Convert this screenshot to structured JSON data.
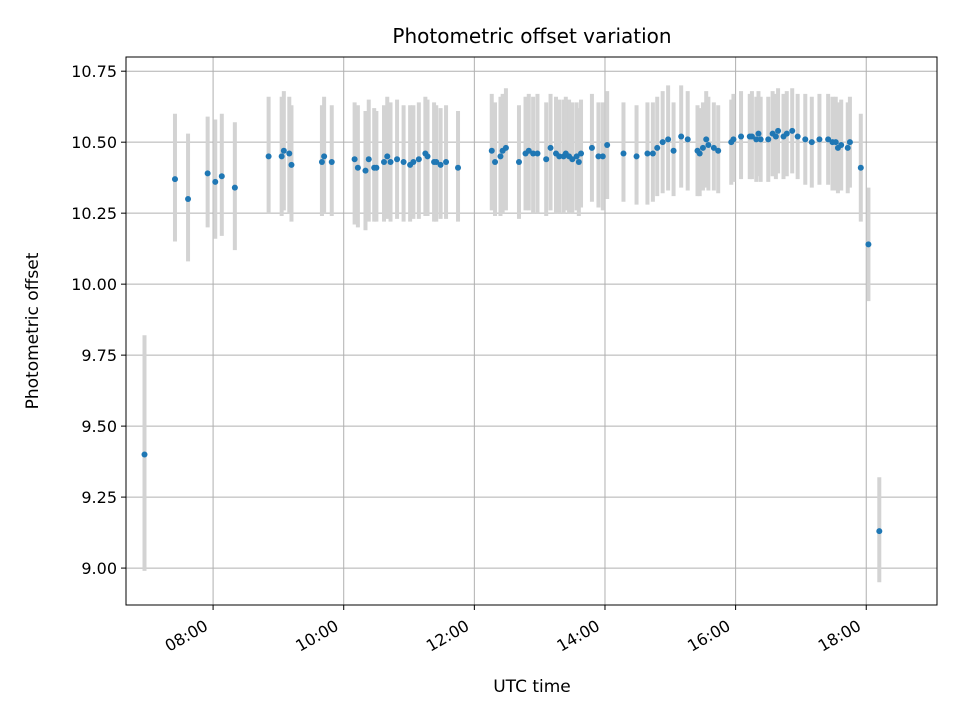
{
  "chart_data": {
    "type": "scatter",
    "title": "Photometric offset variation",
    "xlabel": "UTC time",
    "ylabel": "Photometric offset",
    "grid": true,
    "legend": "none",
    "xlim": [
      "06:40",
      "19:05"
    ],
    "ylim": [
      8.87,
      10.8
    ],
    "x_ticks": [
      "08:00",
      "10:00",
      "12:00",
      "14:00",
      "16:00",
      "18:00"
    ],
    "y_ticks": [
      "9.00",
      "9.25",
      "9.50",
      "9.75",
      "10.00",
      "10.25",
      "10.50",
      "10.75"
    ],
    "colors": {
      "point": "#1f77b4",
      "errorbar": "#d3d3d3",
      "grid": "#b0b0b0",
      "axis": "#000000"
    },
    "series": [
      {
        "x": [
          "06:57",
          "07:25",
          "07:37",
          "07:55",
          "08:02",
          "08:08",
          "08:20",
          "08:51",
          "09:03",
          "09:05",
          "09:10",
          "09:12",
          "09:40",
          "09:42",
          "09:49",
          "10:10",
          "10:13",
          "10:20",
          "10:23",
          "10:28",
          "10:30",
          "10:37",
          "10:40",
          "10:43",
          "10:49",
          "10:55",
          "11:01",
          "11:04",
          "11:09",
          "11:15",
          "11:17",
          "11:23",
          "11:25",
          "11:29",
          "11:34",
          "11:45",
          "12:16",
          "12:19",
          "12:24",
          "12:26",
          "12:29",
          "12:41",
          "12:47",
          "12:50",
          "12:54",
          "12:58",
          "13:06",
          "13:10",
          "13:15",
          "13:18",
          "13:22",
          "13:24",
          "13:27",
          "13:30",
          "13:34",
          "13:36",
          "13:38",
          "13:48",
          "13:54",
          "13:58",
          "14:02",
          "14:17",
          "14:29",
          "14:39",
          "14:44",
          "14:48",
          "14:53",
          "14:58",
          "15:03",
          "15:10",
          "15:16",
          "15:25",
          "15:27",
          "15:30",
          "15:33",
          "15:35",
          "15:40",
          "15:44",
          "15:56",
          "15:58",
          "16:05",
          "16:13",
          "16:15",
          "16:19",
          "16:21",
          "16:23",
          "16:30",
          "16:34",
          "16:37",
          "16:39",
          "16:44",
          "16:47",
          "16:52",
          "16:57",
          "17:04",
          "17:10",
          "17:17",
          "17:25",
          "17:29",
          "17:32",
          "17:34",
          "17:37",
          "17:43",
          "17:45",
          "17:55",
          "18:02",
          "18:12"
        ],
        "y": [
          9.4,
          10.37,
          10.3,
          10.39,
          10.36,
          10.38,
          10.34,
          10.45,
          10.45,
          10.47,
          10.46,
          10.42,
          10.43,
          10.45,
          10.43,
          10.44,
          10.41,
          10.4,
          10.44,
          10.41,
          10.41,
          10.43,
          10.45,
          10.43,
          10.44,
          10.43,
          10.42,
          10.43,
          10.44,
          10.46,
          10.45,
          10.43,
          10.43,
          10.42,
          10.43,
          10.41,
          10.47,
          10.43,
          10.45,
          10.47,
          10.48,
          10.43,
          10.46,
          10.47,
          10.46,
          10.46,
          10.44,
          10.48,
          10.46,
          10.45,
          10.45,
          10.46,
          10.45,
          10.44,
          10.45,
          10.43,
          10.46,
          10.48,
          10.45,
          10.45,
          10.49,
          10.46,
          10.45,
          10.46,
          10.46,
          10.48,
          10.5,
          10.51,
          10.47,
          10.52,
          10.51,
          10.47,
          10.46,
          10.48,
          10.51,
          10.49,
          10.48,
          10.47,
          10.5,
          10.51,
          10.52,
          10.52,
          10.52,
          10.51,
          10.53,
          10.51,
          10.51,
          10.53,
          10.52,
          10.54,
          10.52,
          10.53,
          10.54,
          10.52,
          10.51,
          10.5,
          10.51,
          10.51,
          10.5,
          10.5,
          10.48,
          10.49,
          10.48,
          10.5,
          10.41,
          10.14,
          9.13
        ],
        "err_low": [
          8.99,
          10.15,
          10.08,
          10.2,
          10.16,
          10.17,
          10.12,
          10.25,
          10.24,
          10.26,
          10.25,
          10.22,
          10.24,
          10.25,
          10.24,
          10.21,
          10.2,
          10.19,
          10.22,
          10.22,
          10.22,
          10.22,
          10.23,
          10.22,
          10.23,
          10.22,
          10.22,
          10.23,
          10.23,
          10.24,
          10.24,
          10.22,
          10.22,
          10.23,
          10.23,
          10.22,
          10.26,
          10.24,
          10.24,
          10.25,
          10.26,
          10.23,
          10.26,
          10.26,
          10.25,
          10.25,
          10.24,
          10.26,
          10.25,
          10.25,
          10.25,
          10.26,
          10.25,
          10.25,
          10.26,
          10.24,
          10.27,
          10.29,
          10.27,
          10.26,
          10.3,
          10.29,
          10.28,
          10.28,
          10.29,
          10.31,
          10.32,
          10.33,
          10.31,
          10.34,
          10.33,
          10.31,
          10.31,
          10.33,
          10.34,
          10.33,
          10.33,
          10.32,
          10.35,
          10.36,
          10.37,
          10.37,
          10.37,
          10.36,
          10.38,
          10.36,
          10.36,
          10.38,
          10.37,
          10.39,
          10.37,
          10.38,
          10.39,
          10.37,
          10.35,
          10.34,
          10.35,
          10.35,
          10.33,
          10.33,
          10.32,
          10.33,
          10.32,
          10.34,
          10.22,
          9.94,
          8.95
        ],
        "err_high": [
          9.82,
          10.6,
          10.53,
          10.59,
          10.58,
          10.6,
          10.57,
          10.66,
          10.66,
          10.68,
          10.66,
          10.63,
          10.63,
          10.66,
          10.63,
          10.64,
          10.63,
          10.61,
          10.65,
          10.62,
          10.61,
          10.63,
          10.66,
          10.64,
          10.65,
          10.63,
          10.63,
          10.63,
          10.64,
          10.66,
          10.65,
          10.64,
          10.63,
          10.62,
          10.63,
          10.61,
          10.67,
          10.64,
          10.66,
          10.67,
          10.69,
          10.63,
          10.66,
          10.67,
          10.66,
          10.67,
          10.64,
          10.67,
          10.66,
          10.65,
          10.65,
          10.66,
          10.65,
          10.64,
          10.64,
          10.62,
          10.65,
          10.67,
          10.64,
          10.64,
          10.68,
          10.64,
          10.63,
          10.64,
          10.64,
          10.66,
          10.68,
          10.7,
          10.64,
          10.7,
          10.68,
          10.63,
          10.62,
          10.64,
          10.68,
          10.66,
          10.64,
          10.63,
          10.65,
          10.67,
          10.68,
          10.67,
          10.68,
          10.66,
          10.68,
          10.66,
          10.66,
          10.68,
          10.67,
          10.69,
          10.67,
          10.68,
          10.69,
          10.67,
          10.67,
          10.66,
          10.67,
          10.67,
          10.66,
          10.66,
          10.64,
          10.65,
          10.64,
          10.66,
          10.6,
          10.34,
          9.32
        ]
      }
    ]
  }
}
